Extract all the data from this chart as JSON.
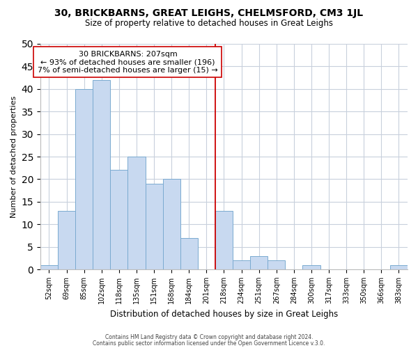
{
  "title": "30, BRICKBARNS, GREAT LEIGHS, CHELMSFORD, CM3 1JL",
  "subtitle": "Size of property relative to detached houses in Great Leighs",
  "xlabel": "Distribution of detached houses by size in Great Leighs",
  "ylabel": "Number of detached properties",
  "bar_labels": [
    "52sqm",
    "69sqm",
    "85sqm",
    "102sqm",
    "118sqm",
    "135sqm",
    "151sqm",
    "168sqm",
    "184sqm",
    "201sqm",
    "218sqm",
    "234sqm",
    "251sqm",
    "267sqm",
    "284sqm",
    "300sqm",
    "317sqm",
    "333sqm",
    "350sqm",
    "366sqm",
    "383sqm"
  ],
  "bar_values": [
    1,
    13,
    40,
    42,
    22,
    25,
    19,
    20,
    7,
    0,
    13,
    2,
    3,
    2,
    0,
    1,
    0,
    0,
    0,
    0,
    1
  ],
  "bar_color": "#c8d9f0",
  "bar_edge_color": "#7aaad0",
  "ylim": [
    0,
    50
  ],
  "yticks": [
    0,
    5,
    10,
    15,
    20,
    25,
    30,
    35,
    40,
    45,
    50
  ],
  "annotation_title": "30 BRICKBARNS: 207sqm",
  "annotation_line1": "← 93% of detached houses are smaller (196)",
  "annotation_line2": "7% of semi-detached houses are larger (15) →",
  "vline_x_index": 9.5,
  "vline_color": "#cc0000",
  "footer1": "Contains HM Land Registry data © Crown copyright and database right 2024.",
  "footer2": "Contains public sector information licensed under the Open Government Licence v.3.0.",
  "background_color": "#ffffff",
  "grid_color": "#c8d0dc"
}
